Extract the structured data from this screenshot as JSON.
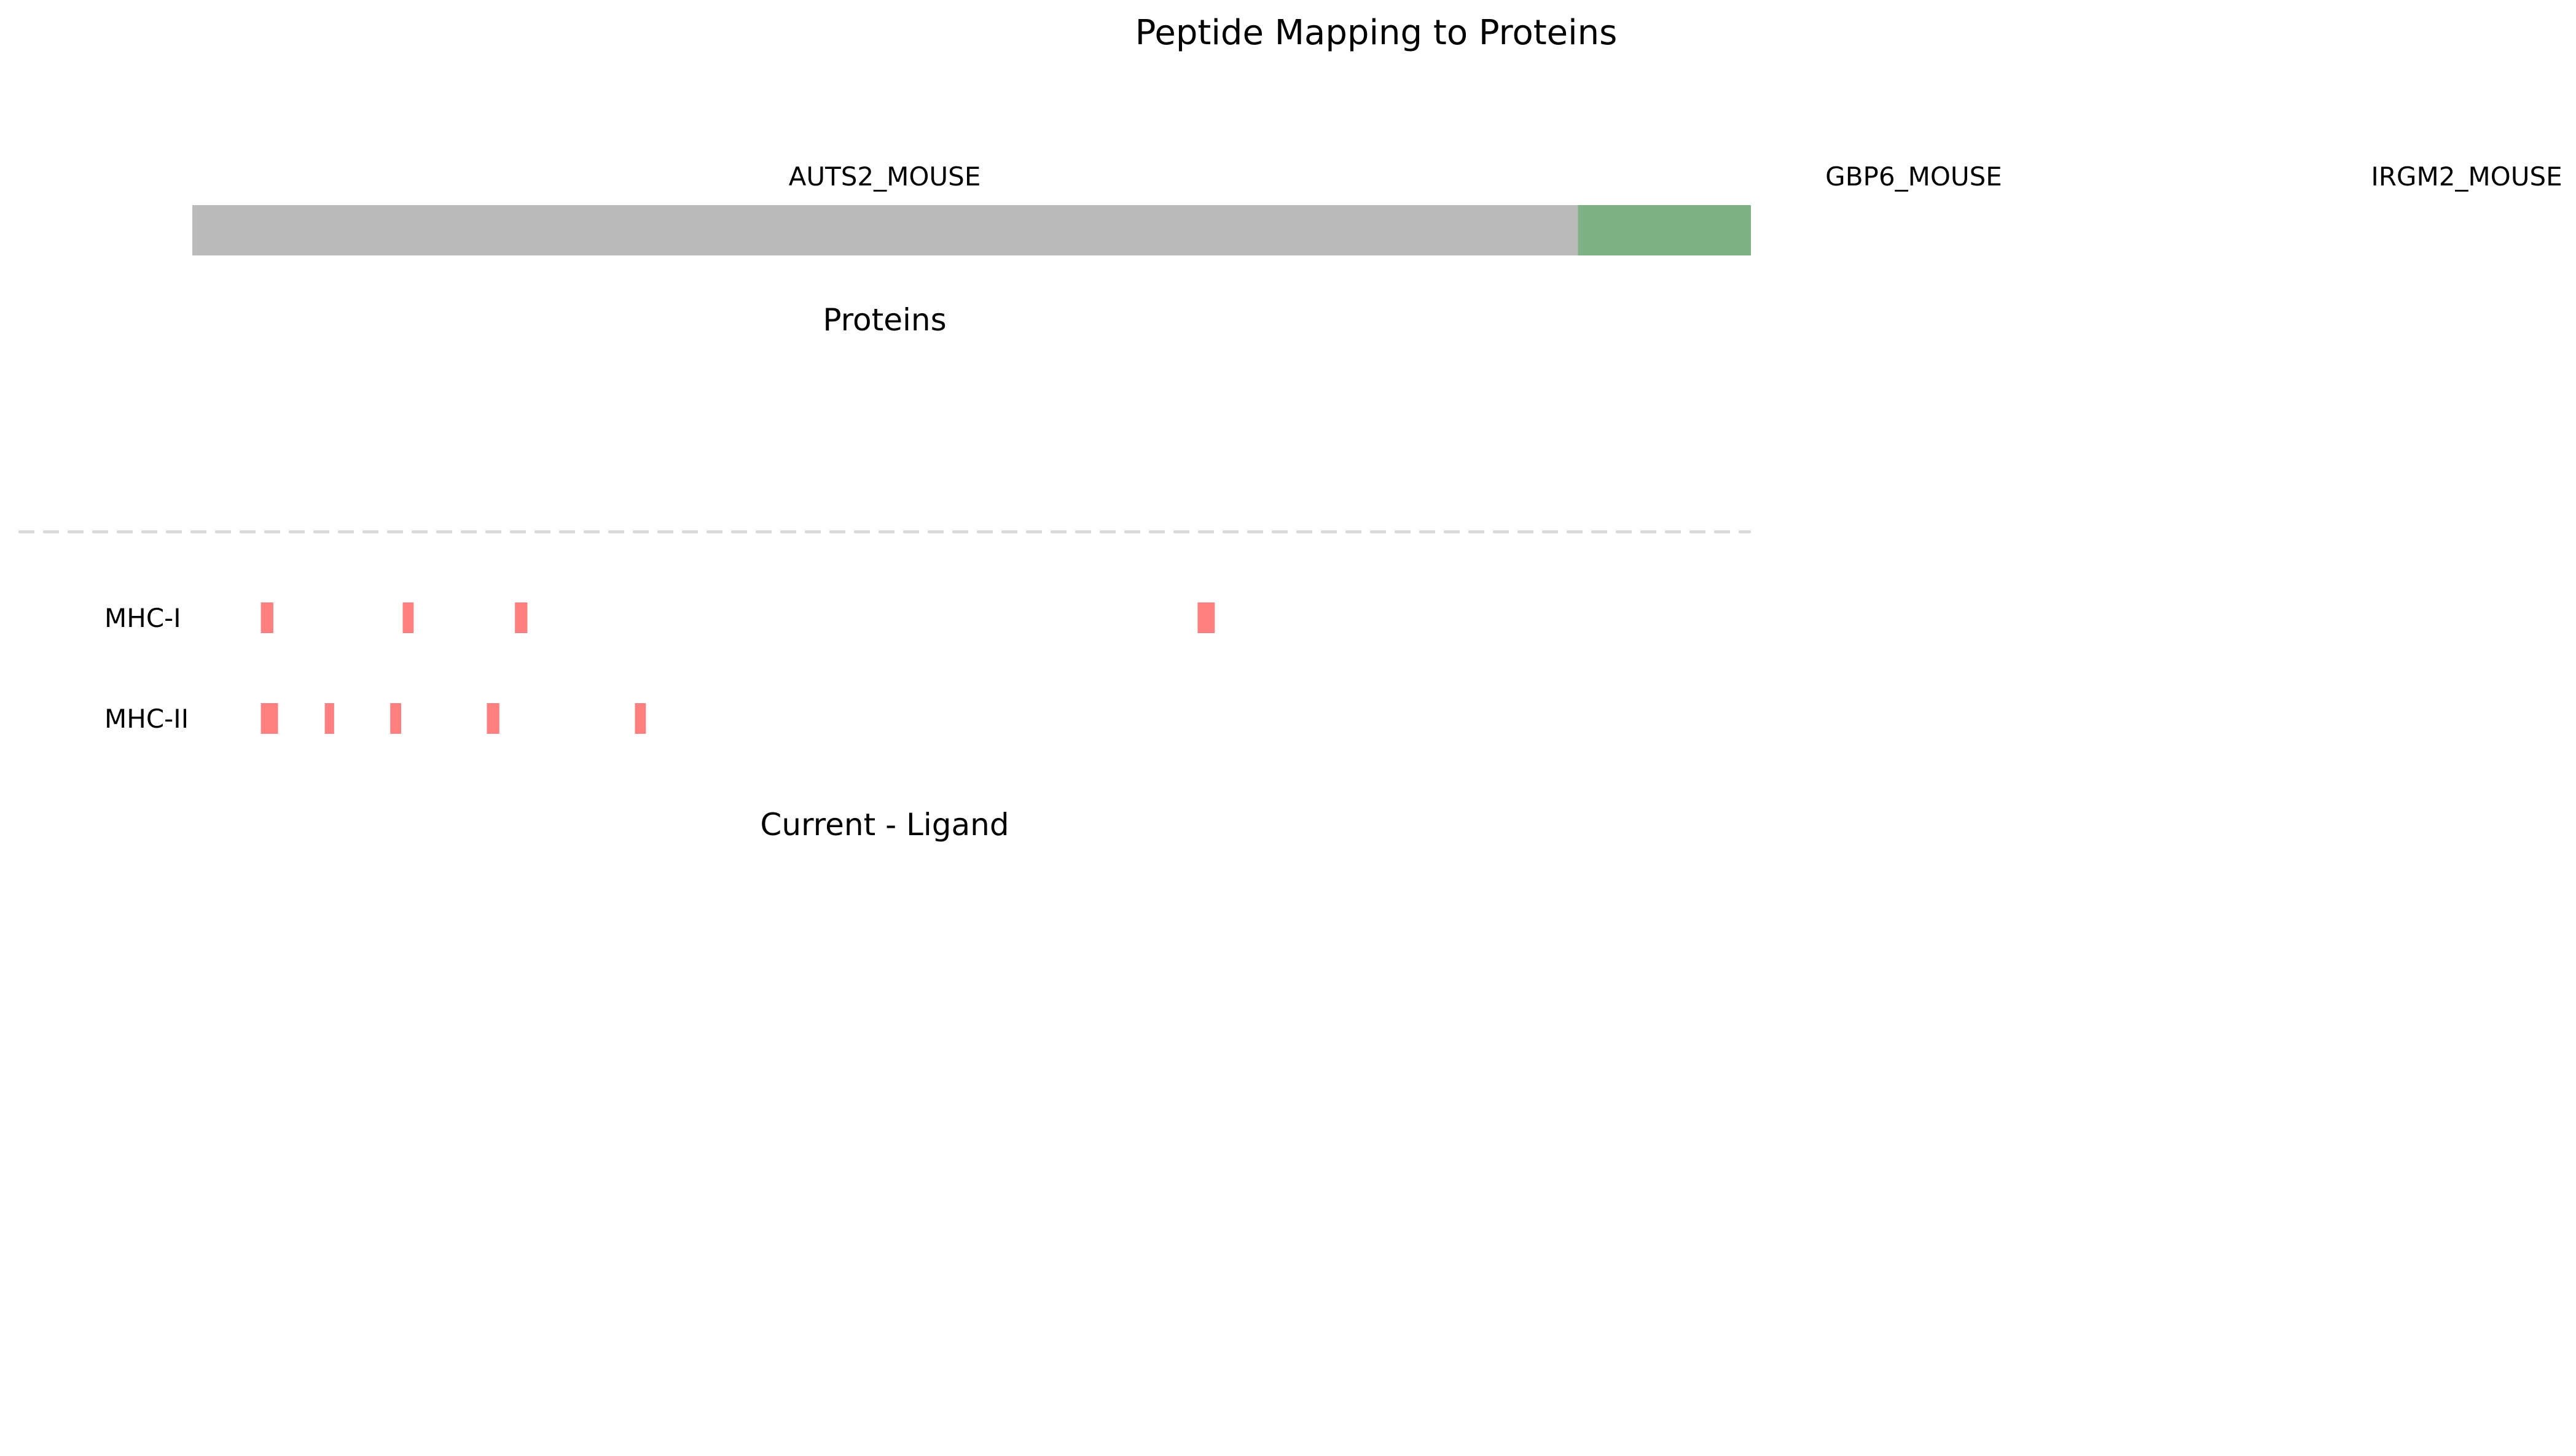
{
  "chart_data": {
    "type": "bar",
    "title": "Peptide Mapping to Proteins",
    "x_range": [
      0,
      1.0
    ],
    "proteins": [
      {
        "name": "AUTS2_MOUSE",
        "segments": [
          {
            "start": 0.0,
            "end": 0.889,
            "color": "#bbbbbb"
          },
          {
            "start": 0.889,
            "end": 1.0,
            "color": "#7fb187"
          }
        ]
      },
      {
        "name": "GBP6_MOUSE",
        "segments": []
      },
      {
        "name": "IRGM2_MOUSE",
        "segments": []
      }
    ],
    "section_titles": {
      "proteins": "Proteins",
      "ligand": "Current - Ligand"
    },
    "ligand_rows": [
      {
        "label": "MHC-I",
        "peptides": [
          {
            "start": 0.044,
            "end": 0.052
          },
          {
            "start": 0.135,
            "end": 0.142
          },
          {
            "start": 0.207,
            "end": 0.215
          },
          {
            "start": 0.645,
            "end": 0.656
          }
        ]
      },
      {
        "label": "MHC-II",
        "peptides": [
          {
            "start": 0.044,
            "end": 0.055
          },
          {
            "start": 0.085,
            "end": 0.091
          },
          {
            "start": 0.127,
            "end": 0.134
          },
          {
            "start": 0.189,
            "end": 0.197
          },
          {
            "start": 0.284,
            "end": 0.291
          }
        ]
      }
    ],
    "peptide_color": "#ff8080",
    "separator_color": "#d9d9d9",
    "grid": false
  }
}
